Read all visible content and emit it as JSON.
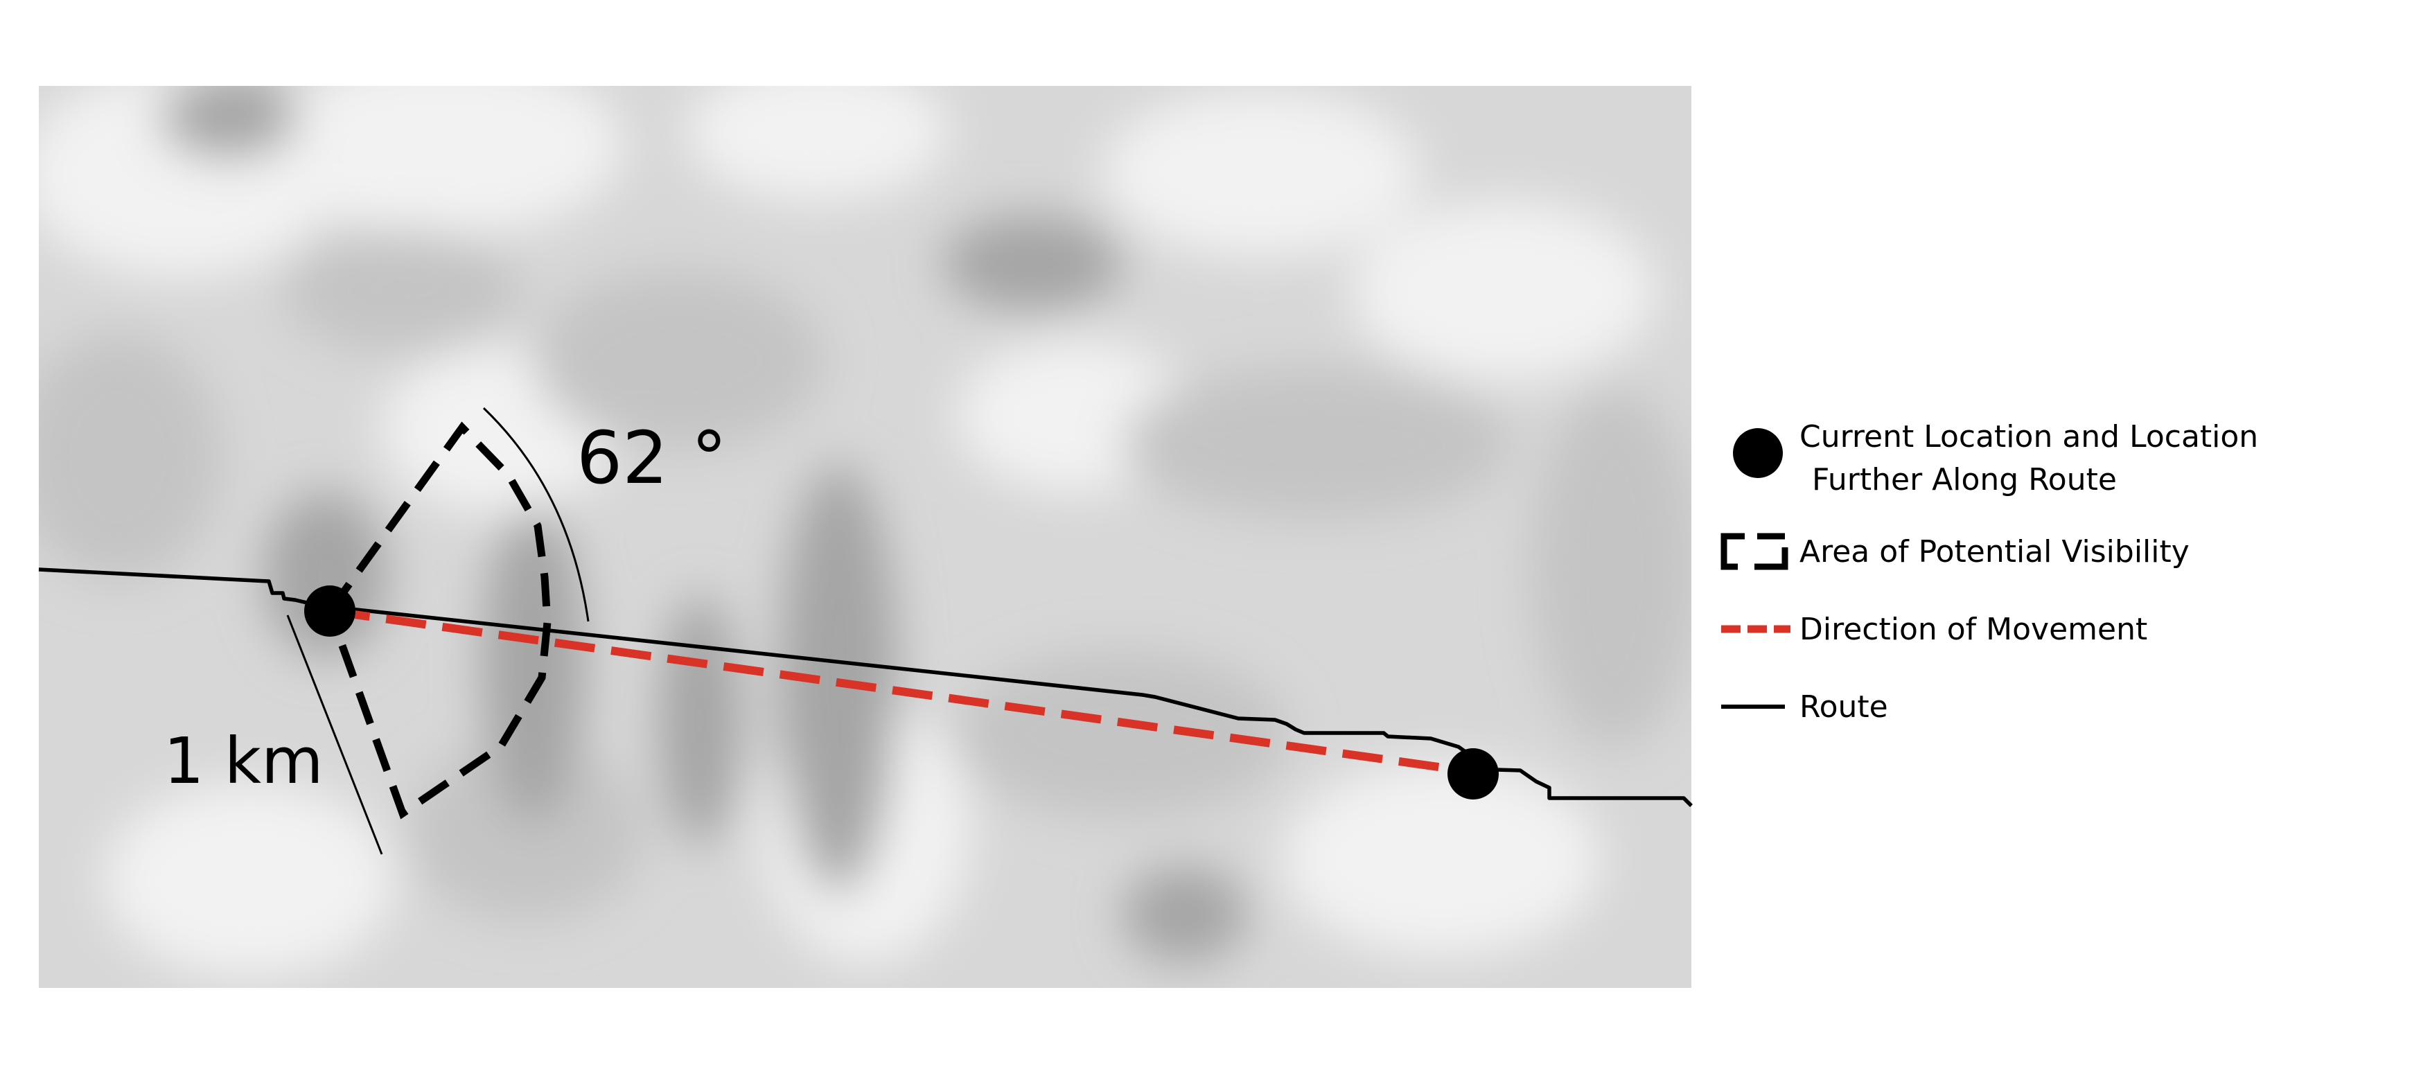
{
  "map": {
    "angle_label": "62 °",
    "distance_label": "1 km",
    "colors": {
      "route": "#000000",
      "direction_of_movement": "#d93327",
      "visibility_area": "#000000",
      "location_marker": "#000000",
      "hillshade_light": "#f4f4f4",
      "hillshade_dark": "#8f8f8f"
    },
    "legend": {
      "location_label_line1": "Current Location and Location",
      "location_label_line2": "Further Along Route",
      "visibility_label": "Area of Potential Visibility",
      "direction_label": "Direction of Movement",
      "route_label": "Route"
    }
  }
}
